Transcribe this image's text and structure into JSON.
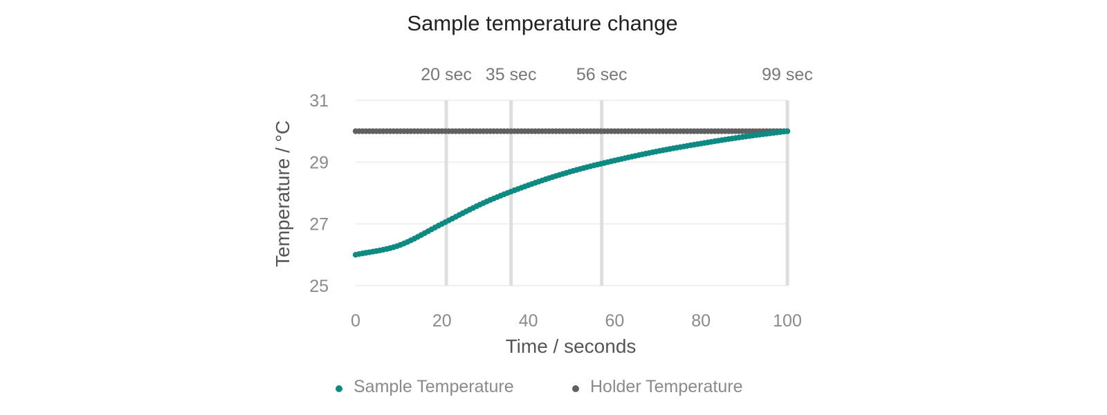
{
  "chart_data": {
    "type": "scatter",
    "title": "Sample temperature change",
    "xlabel": "Time / seconds",
    "ylabel": "Temperature / °C",
    "xlim": [
      0,
      100
    ],
    "ylim": [
      25,
      31
    ],
    "x_ticks": [
      0,
      20,
      40,
      60,
      80,
      100
    ],
    "y_ticks": [
      25,
      27,
      29,
      31
    ],
    "grid": "horizontal",
    "legend": "bottom",
    "markers": [
      {
        "x": 21,
        "label": "20 sec"
      },
      {
        "x": 36,
        "label": "35 sec"
      },
      {
        "x": 57,
        "label": "56 sec"
      },
      {
        "x": 100,
        "label": "99 sec"
      }
    ],
    "series": [
      {
        "name": "Sample Temperature",
        "color": "#0e8a82",
        "x": [
          0,
          10,
          20,
          30,
          40,
          50,
          60,
          70,
          80,
          90,
          100
        ],
        "y": [
          26.0,
          26.3,
          27.0,
          27.7,
          28.25,
          28.7,
          29.05,
          29.35,
          29.6,
          29.82,
          30.0
        ]
      },
      {
        "name": "Holder Temperature",
        "color": "#606060",
        "x": [
          0,
          20,
          40,
          60,
          80,
          100
        ],
        "y": [
          30.0,
          30.0,
          30.0,
          30.0,
          30.0,
          30.0
        ]
      }
    ]
  }
}
